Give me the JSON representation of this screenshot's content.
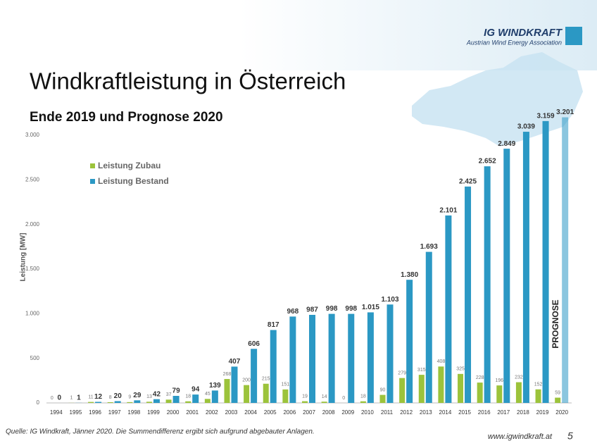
{
  "chart_data": {
    "type": "bar",
    "title": "Windkraftleistung in Österreich",
    "subtitle": "Ende 2019 und Prognose 2020",
    "y_label": "Leistung [MW]",
    "annotation": "PROGNOSE",
    "categories": [
      "1994",
      "1995",
      "1996",
      "1997",
      "1998",
      "1999",
      "2000",
      "2001",
      "2002",
      "2003",
      "2004",
      "2005",
      "2006",
      "2007",
      "2008",
      "2009",
      "2010",
      "2011",
      "2012",
      "2013",
      "2014",
      "2015",
      "2016",
      "2017",
      "2018",
      "2019",
      "2020"
    ],
    "series": [
      {
        "name": "Leistung Zubau",
        "color": "#9cc33b",
        "values": [
          0,
          1,
          11,
          8,
          9,
          13,
          37,
          18,
          45,
          268,
          200,
          215,
          151,
          19,
          14,
          0,
          18,
          90,
          279,
          315,
          408,
          325,
          228,
          196,
          232,
          152,
          59
        ]
      },
      {
        "name": "Leistung Bestand",
        "color": "#2b98c4",
        "values": [
          0,
          1,
          12,
          20,
          29,
          42,
          79,
          94,
          139,
          407,
          606,
          817,
          968,
          987,
          998,
          998,
          1015,
          1103,
          1380,
          1693,
          2101,
          2425,
          2652,
          2849,
          3039,
          3159,
          3201
        ],
        "value_labels": [
          "0",
          "1",
          "12",
          "20",
          "29",
          "42",
          "79",
          "94",
          "139",
          "407",
          "606",
          "817",
          "968",
          "987",
          "998",
          "998",
          "1.015",
          "1.103",
          "1.380",
          "1.693",
          "2.101",
          "2.425",
          "2.652",
          "2.849",
          "3.039",
          "3.159",
          "3.201"
        ]
      }
    ],
    "ylim": [
      0,
      3000
    ],
    "yticks": [
      0,
      500,
      {
        "value": 1000,
        "label": "1.000"
      },
      {
        "value": 1500,
        "label": "1.500"
      },
      {
        "value": 2000,
        "label": "2.000"
      },
      {
        "value": 2500,
        "label": "2.500"
      },
      {
        "value": 3000,
        "label": "3.000"
      }
    ],
    "grid": false,
    "legend": "upper left"
  },
  "slide": {
    "logo": "IG WINDKRAFT",
    "logo_subtitle": "Austrian Wind Energy Association",
    "source": "Quelle: IG Windkraft, Jänner 2020. Die Summendifferenz ergibt sich aufgrund abgebauter Anlagen.",
    "url": "www.igwindkraft.at",
    "page_number": "5"
  }
}
